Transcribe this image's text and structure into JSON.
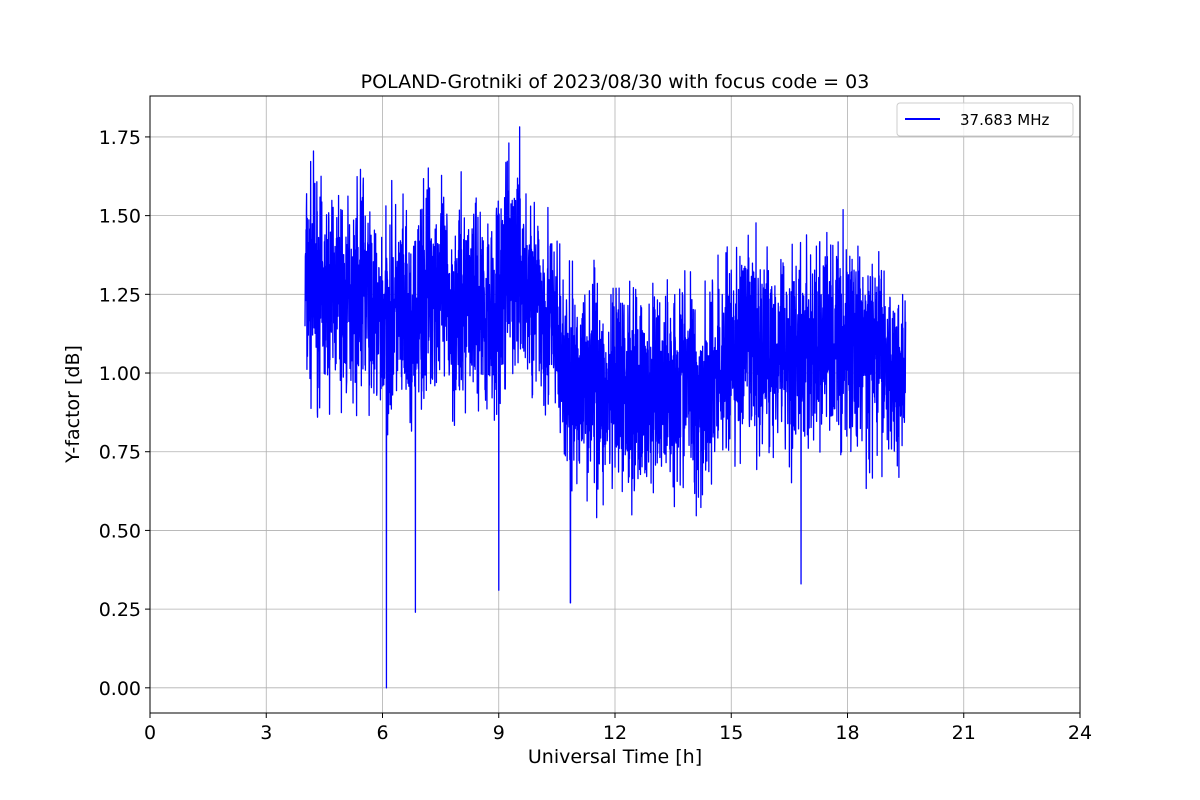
{
  "chart_data": {
    "type": "line",
    "title": "POLAND-Grotniki of 2023/08/30 with focus code = 03",
    "xlabel": "Universal Time [h]",
    "ylabel": "Y-factor [dB]",
    "xlim": [
      0,
      24
    ],
    "ylim": [
      -0.08,
      1.88
    ],
    "xticks": [
      0,
      3,
      6,
      9,
      12,
      15,
      18,
      21,
      24
    ],
    "xtick_labels": [
      "0",
      "3",
      "6",
      "9",
      "12",
      "15",
      "18",
      "21",
      "24"
    ],
    "yticks": [
      0.0,
      0.25,
      0.5,
      0.75,
      1.0,
      1.25,
      1.5,
      1.75
    ],
    "ytick_labels": [
      "0.00",
      "0.25",
      "0.50",
      "0.75",
      "1.00",
      "1.25",
      "1.50",
      "1.75"
    ],
    "grid": true,
    "legend_position": "top-right",
    "series": [
      {
        "name": "37.683 MHz",
        "color": "#0000ff",
        "x": [
          4.0,
          4.25,
          4.5,
          4.75,
          5.0,
          5.25,
          5.5,
          5.75,
          6.0,
          6.1,
          6.25,
          6.5,
          6.75,
          6.85,
          7.0,
          7.25,
          7.5,
          7.75,
          8.0,
          8.25,
          8.5,
          8.75,
          9.0,
          9.25,
          9.5,
          9.75,
          10.0,
          10.25,
          10.5,
          10.75,
          10.85,
          11.0,
          11.25,
          11.5,
          11.75,
          12.0,
          12.25,
          12.5,
          12.75,
          13.0,
          13.25,
          13.5,
          13.75,
          14.0,
          14.25,
          14.5,
          14.75,
          15.0,
          15.25,
          15.5,
          15.75,
          16.0,
          16.25,
          16.5,
          16.8,
          17.0,
          17.25,
          17.5,
          17.75,
          18.0,
          18.25,
          18.5,
          18.75,
          19.0,
          19.25,
          19.5
        ],
        "y": [
          1.25,
          1.3,
          1.22,
          1.28,
          1.2,
          1.24,
          1.3,
          1.18,
          1.15,
          0.0,
          1.2,
          1.18,
          1.1,
          0.24,
          1.22,
          1.3,
          1.25,
          1.2,
          1.18,
          1.28,
          1.22,
          1.2,
          0.31,
          1.3,
          1.35,
          1.25,
          1.22,
          1.2,
          1.1,
          0.95,
          0.27,
          0.95,
          0.98,
          1.0,
          0.9,
          0.92,
          0.95,
          0.98,
          0.9,
          0.93,
          0.97,
          0.95,
          1.0,
          0.95,
          0.92,
          0.98,
          1.02,
          1.05,
          1.08,
          1.1,
          1.05,
          1.08,
          1.1,
          1.05,
          0.33,
          1.1,
          1.05,
          1.12,
          1.08,
          1.1,
          1.08,
          1.05,
          1.07,
          1.03,
          1.0,
          1.02
        ],
        "amplitude": [
          0.35,
          0.33,
          0.3,
          0.32,
          0.3,
          0.3,
          0.32,
          0.3,
          0.3,
          0.3,
          0.32,
          0.33,
          0.3,
          0.3,
          0.33,
          0.32,
          0.3,
          0.32,
          0.33,
          0.3,
          0.3,
          0.32,
          0.3,
          0.33,
          0.35,
          0.3,
          0.3,
          0.32,
          0.3,
          0.3,
          0.3,
          0.3,
          0.3,
          0.33,
          0.3,
          0.3,
          0.32,
          0.33,
          0.3,
          0.32,
          0.3,
          0.3,
          0.32,
          0.33,
          0.3,
          0.3,
          0.32,
          0.33,
          0.35,
          0.33,
          0.3,
          0.32,
          0.33,
          0.3,
          0.3,
          0.3,
          0.32,
          0.33,
          0.32,
          0.33,
          0.32,
          0.3,
          0.3,
          0.28,
          0.28,
          0.27
        ]
      }
    ]
  }
}
